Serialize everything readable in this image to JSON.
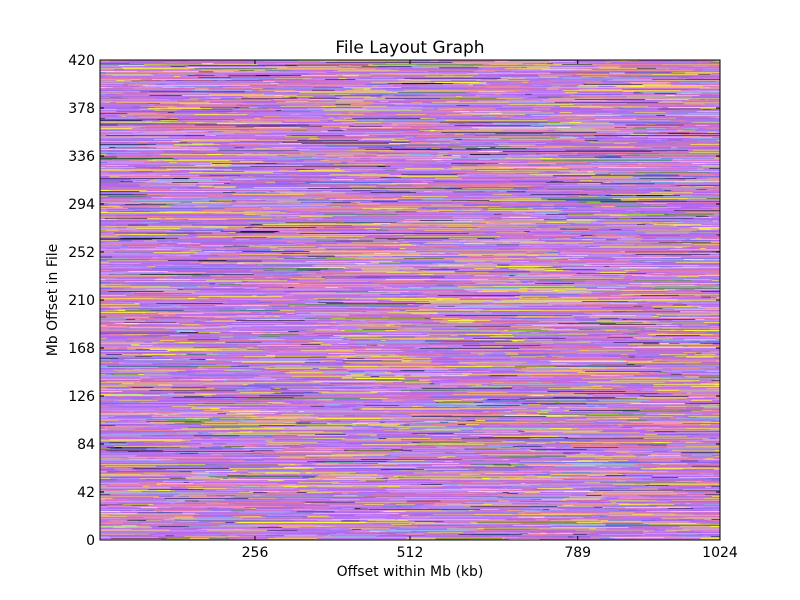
{
  "chart_data": {
    "type": "heatmap",
    "title": "File Layout Graph",
    "xlabel": "Offset within Mb (kb)",
    "ylabel": "Mb Offset in File",
    "xlim": [
      0,
      1024
    ],
    "ylim": [
      0,
      420
    ],
    "x_ticks": [
      256,
      512,
      789,
      1024
    ],
    "x_tick_labels": [
      "256",
      "512",
      "789",
      "1024"
    ],
    "y_ticks": [
      0,
      42,
      84,
      126,
      168,
      210,
      252,
      294,
      336,
      378,
      420
    ],
    "y_tick_labels": [
      "0",
      "42",
      "84",
      "126",
      "168",
      "210",
      "252",
      "294",
      "336",
      "378",
      "420"
    ],
    "grid": false,
    "legend": "none",
    "palette": [
      "#b466f0",
      "#c27cf4",
      "#a06ee8",
      "#d96fb5",
      "#e67fa3",
      "#f2c36b",
      "#ffff33",
      "#e8e84a",
      "#8f8ff0",
      "#5a6ee0",
      "#f28c8c",
      "#1a1a3a",
      "#c8a0ff",
      "#7ec6e6",
      "#3c8f3c",
      "#ff9fd0"
    ],
    "palette_weights": [
      18,
      14,
      10,
      10,
      7,
      6,
      6,
      3,
      5,
      3,
      4,
      3,
      6,
      2,
      1,
      2
    ],
    "rows_per_mb": 0.5
  }
}
